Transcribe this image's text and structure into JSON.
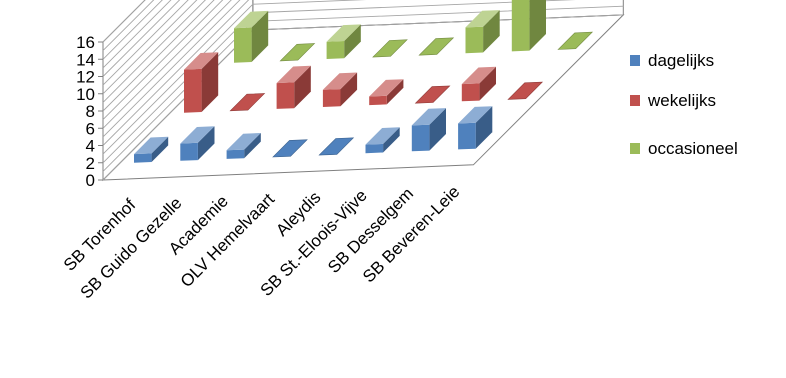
{
  "chart_data": {
    "type": "bar",
    "subtype": "3d-clustered-depth",
    "title": "",
    "xlabel": "",
    "ylabel": "",
    "ylim": [
      0,
      16
    ],
    "yticks": [
      0,
      2,
      4,
      6,
      8,
      10,
      12,
      14,
      16
    ],
    "ytick_labels": [
      "0",
      "2",
      "4",
      "6",
      "8",
      "10",
      "12",
      "14",
      "16"
    ],
    "grid": true,
    "legend_position": "right",
    "categories": [
      "SB Torenhof",
      "SB Guido Gezelle",
      "Academie",
      "OLV Hemelvaart",
      "Aleydis",
      "SB St.-Eloois-Vijve",
      "SB Desselgem",
      "SB Beveren-Leie"
    ],
    "series": [
      {
        "name": "dagelijks",
        "color": "#4f81bd",
        "values": [
          1,
          2,
          1,
          0,
          0,
          1,
          3,
          3
        ]
      },
      {
        "name": "wekelijks",
        "color": "#c0504d",
        "values": [
          5,
          0,
          3,
          2,
          1,
          0,
          2,
          0
        ]
      },
      {
        "name": "occasioneel",
        "color": "#9bbb59",
        "values": [
          4,
          0,
          2,
          0,
          0,
          3,
          15,
          0
        ]
      }
    ]
  }
}
